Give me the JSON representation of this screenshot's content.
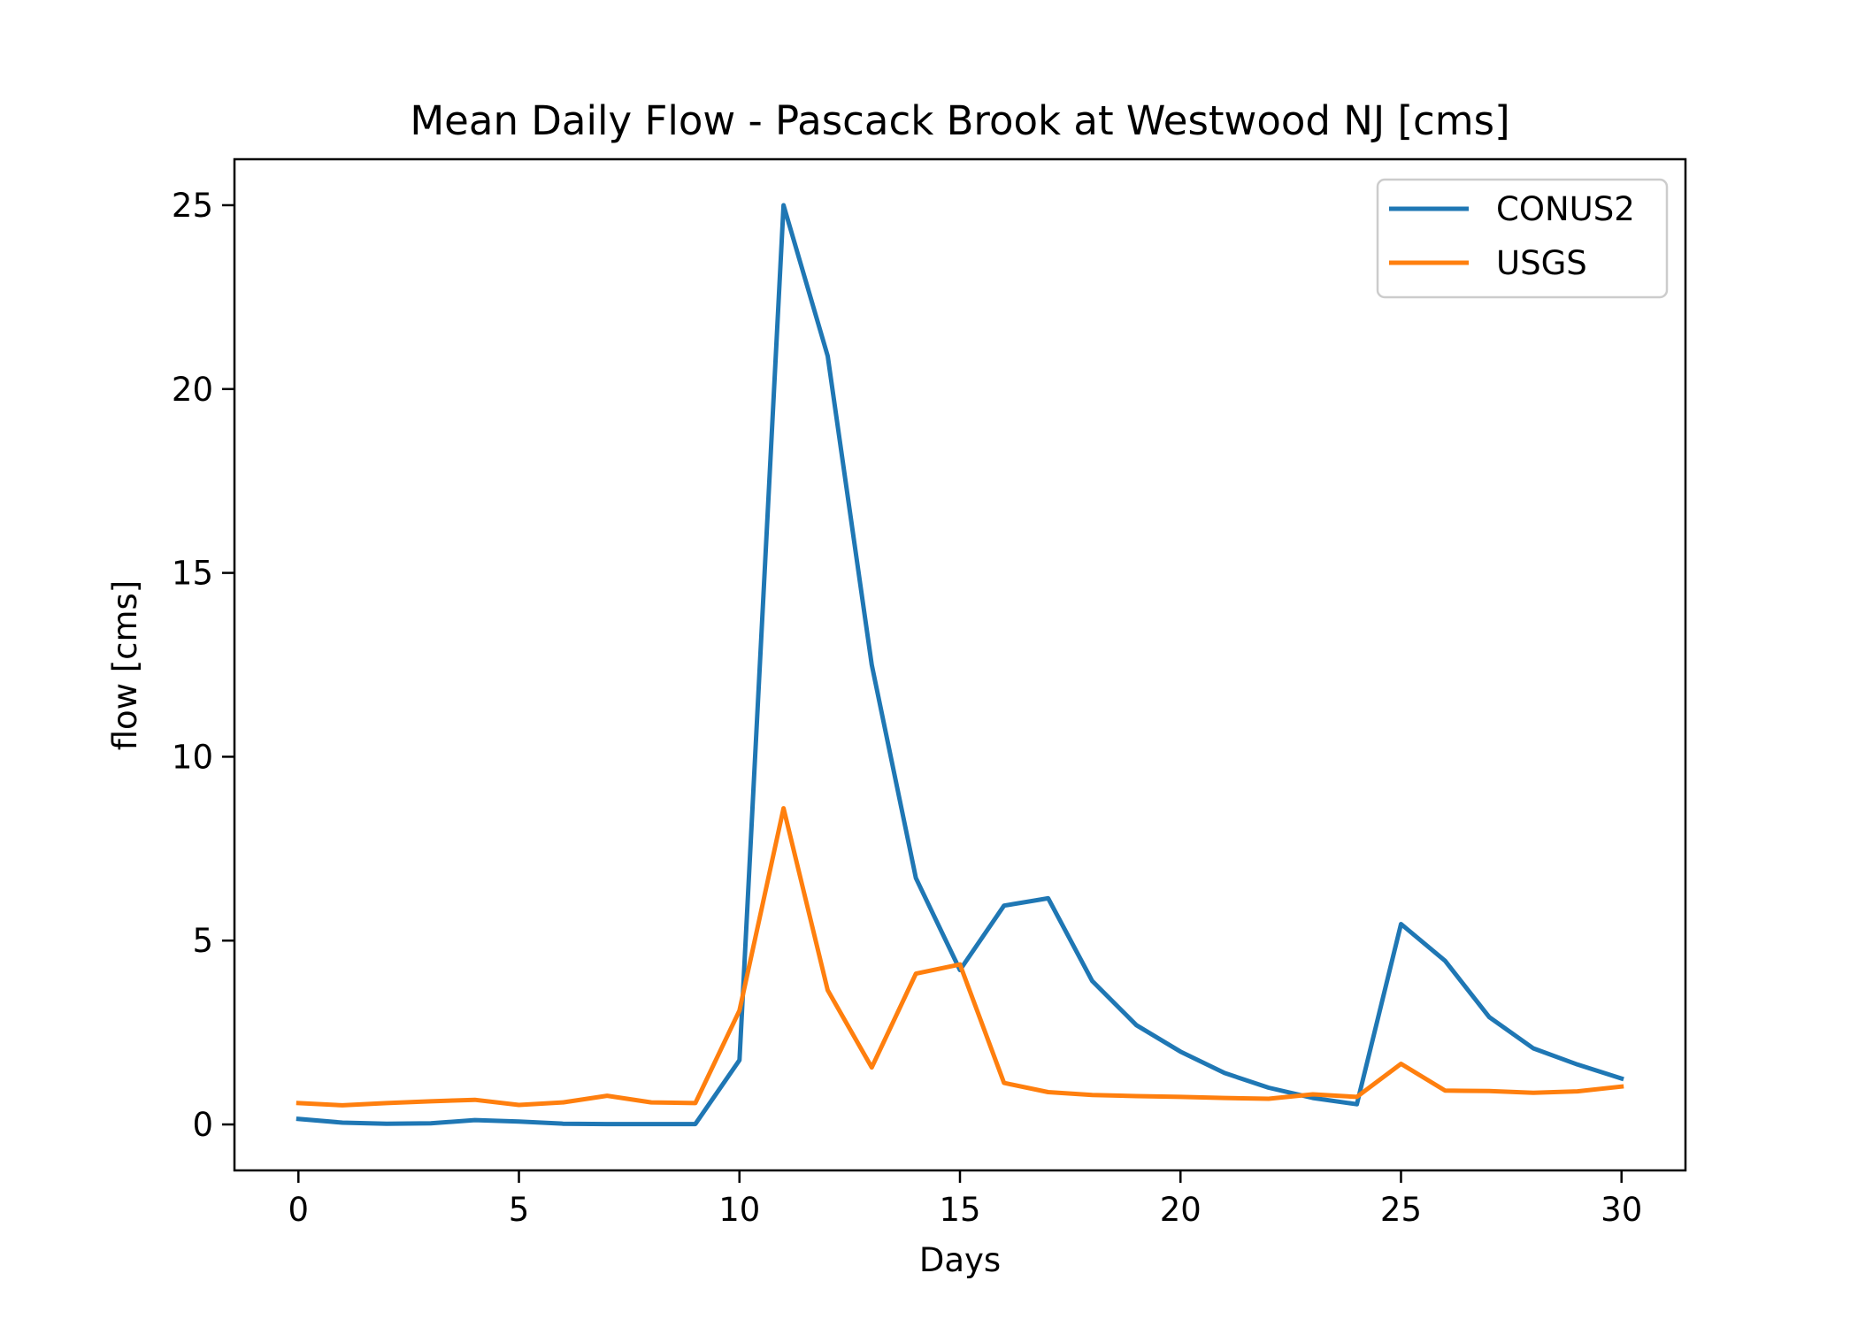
{
  "chart_data": {
    "type": "line",
    "title": "Mean Daily Flow - Pascack Brook at Westwood NJ [cms]",
    "xlabel": "Days",
    "ylabel": "flow [cms]",
    "xlim": [
      -1.45,
      31.45
    ],
    "ylim": [
      -1.25,
      26.25
    ],
    "xticks": [
      0,
      5,
      10,
      15,
      20,
      25,
      30
    ],
    "yticks": [
      0,
      5,
      10,
      15,
      20,
      25
    ],
    "grid": false,
    "legend_position": "top-right",
    "x": [
      0,
      1,
      2,
      3,
      4,
      5,
      6,
      7,
      8,
      9,
      10,
      11,
      12,
      13,
      14,
      15,
      16,
      17,
      18,
      19,
      20,
      21,
      22,
      23,
      24,
      25,
      26,
      27,
      28,
      29,
      30
    ],
    "series": [
      {
        "name": "CONUS2",
        "color": "#1f77b4",
        "values": [
          0.15,
          0.05,
          0.02,
          0.03,
          0.12,
          0.08,
          0.02,
          0.01,
          0.01,
          0.01,
          1.75,
          25.0,
          20.9,
          12.5,
          6.7,
          4.2,
          5.95,
          6.15,
          3.9,
          2.7,
          1.98,
          1.4,
          1.0,
          0.72,
          0.55,
          5.45,
          4.45,
          2.92,
          2.07,
          1.63,
          1.25
        ]
      },
      {
        "name": "USGS",
        "color": "#ff7f0e",
        "values": [
          0.58,
          0.52,
          0.58,
          0.63,
          0.67,
          0.53,
          0.6,
          0.78,
          0.6,
          0.58,
          3.1,
          8.6,
          3.65,
          1.55,
          4.1,
          4.35,
          1.13,
          0.88,
          0.8,
          0.77,
          0.75,
          0.72,
          0.7,
          0.82,
          0.75,
          1.65,
          0.92,
          0.91,
          0.86,
          0.9,
          1.03
        ]
      }
    ]
  }
}
